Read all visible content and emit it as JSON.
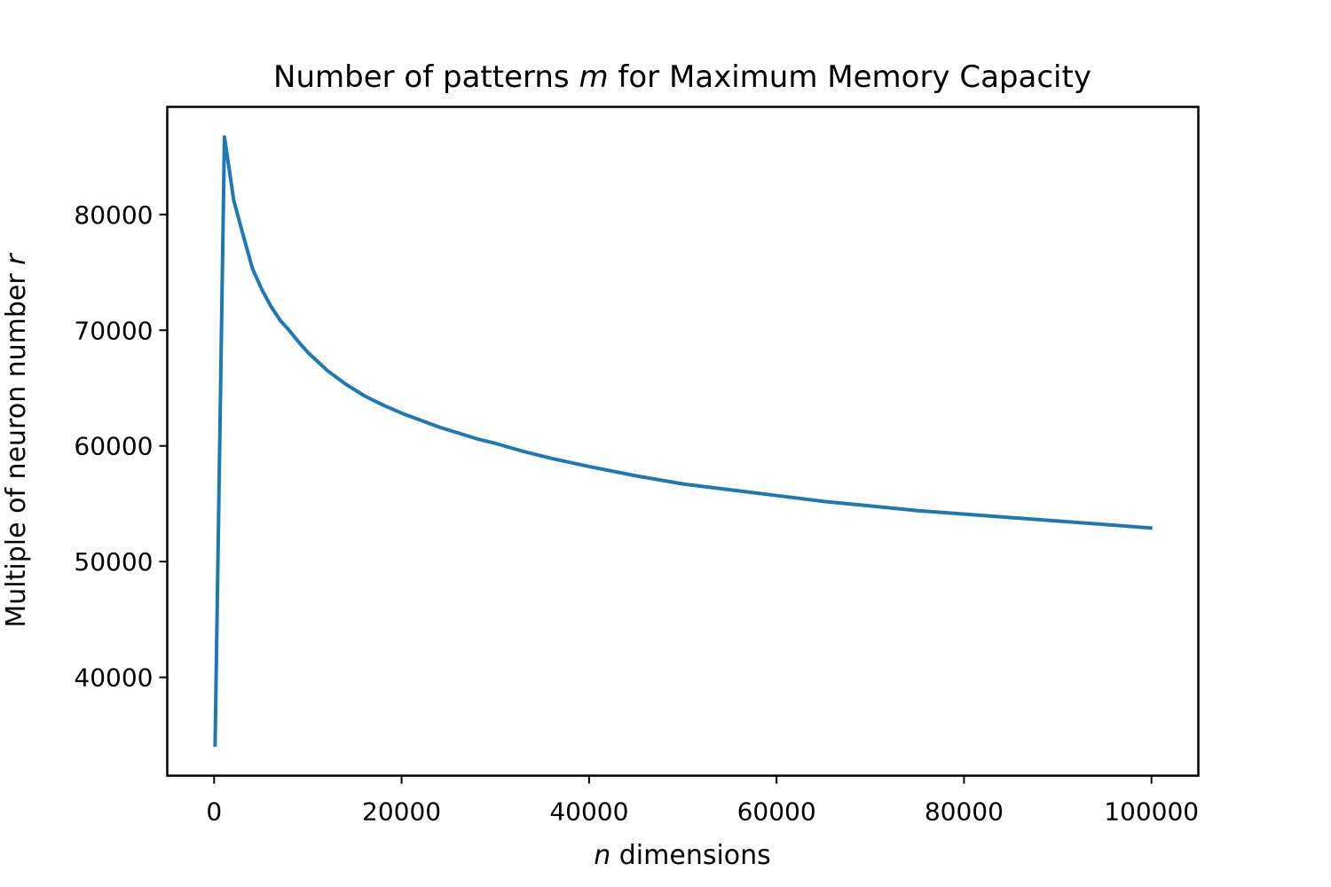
{
  "chart_data": {
    "type": "line",
    "title_prefix": "Number of patterns ",
    "title_var": "m",
    "title_suffix": " for Maximum Memory Capacity",
    "xlabel_var": "n",
    "xlabel_suffix": " dimensions",
    "ylabel_prefix": "Multiple of neuron number ",
    "ylabel_var": "r",
    "xlim": [
      -5000,
      105000
    ],
    "ylim": [
      31500,
      89300
    ],
    "xticks": [
      0,
      20000,
      40000,
      60000,
      80000,
      100000
    ],
    "xtick_labels": [
      "0",
      "20000",
      "40000",
      "60000",
      "80000",
      "100000"
    ],
    "yticks": [
      40000,
      50000,
      60000,
      70000,
      80000
    ],
    "ytick_labels": [
      "40000",
      "50000",
      "60000",
      "70000",
      "80000"
    ],
    "grid": false,
    "series": [
      {
        "color": "#1f77b4",
        "x": [
          100,
          1100,
          2100,
          3100,
          4100,
          5100,
          6100,
          7100,
          8100,
          9100,
          10100,
          12100,
          14100,
          16100,
          18100,
          20100,
          22100,
          24100,
          26100,
          28100,
          30100,
          33100,
          36100,
          40100,
          45100,
          50100,
          55100,
          60100,
          65100,
          70100,
          75100,
          80100,
          85100,
          90100,
          95100,
          100100
        ],
        "y": [
          34000,
          86700,
          81200,
          78200,
          75300,
          73500,
          72000,
          70800,
          69900,
          68900,
          68000,
          66500,
          65300,
          64300,
          63500,
          62800,
          62200,
          61600,
          61100,
          60600,
          60200,
          59500,
          58900,
          58200,
          57400,
          56700,
          56200,
          55700,
          55200,
          54800,
          54400,
          54100,
          53800,
          53500,
          53200,
          52900
        ]
      }
    ]
  }
}
